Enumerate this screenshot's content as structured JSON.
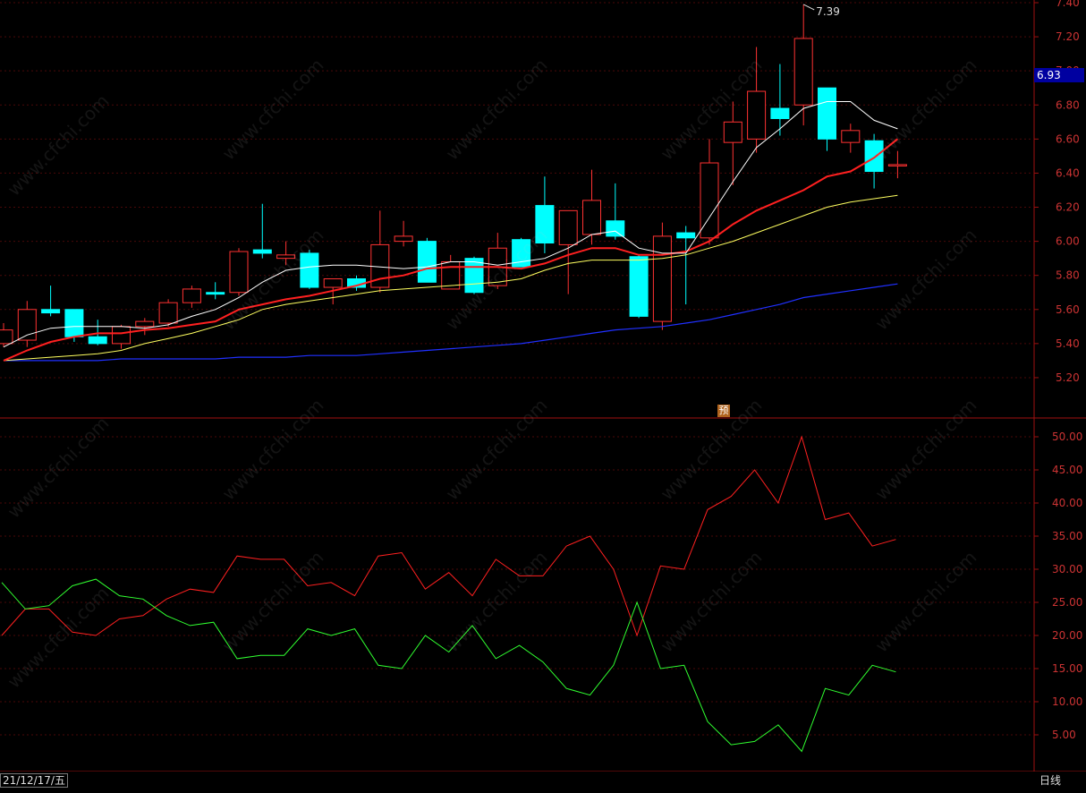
{
  "price_tag": "6.93",
  "date_label": "21/12/17/五",
  "period_label": "日线",
  "preview_icon": "预",
  "watermark": "www.cfchi.com",
  "colors": {
    "up": "#ff3232",
    "down": "#00ffff",
    "ma5": "#ffffff",
    "ma10": "#ff2020",
    "ma20": "#ffff60",
    "ma60": "#2030ff",
    "indicator_a": "#ff2020",
    "indicator_b": "#30ff30",
    "axis": "#a01010"
  },
  "chart_data": [
    {
      "type": "candlestick",
      "title": "",
      "ylim": [
        5.1,
        7.4
      ],
      "ytick_labels": [
        "7.40",
        "7.20",
        "7.00",
        "6.80",
        "6.60",
        "6.40",
        "6.20",
        "6.00",
        "5.80",
        "5.60",
        "5.40",
        "5.20"
      ],
      "max_annotation": "7.39",
      "candles": [
        {
          "o": 5.4,
          "h": 5.52,
          "l": 5.38,
          "c": 5.48
        },
        {
          "o": 5.42,
          "h": 5.65,
          "l": 5.38,
          "c": 5.6
        },
        {
          "o": 5.6,
          "h": 5.74,
          "l": 5.56,
          "c": 5.58
        },
        {
          "o": 5.6,
          "h": 5.6,
          "l": 5.41,
          "c": 5.44
        },
        {
          "o": 5.44,
          "h": 5.54,
          "l": 5.39,
          "c": 5.4
        },
        {
          "o": 5.4,
          "h": 5.51,
          "l": 5.37,
          "c": 5.5
        },
        {
          "o": 5.5,
          "h": 5.55,
          "l": 5.45,
          "c": 5.53
        },
        {
          "o": 5.52,
          "h": 5.66,
          "l": 5.5,
          "c": 5.64
        },
        {
          "o": 5.64,
          "h": 5.74,
          "l": 5.61,
          "c": 5.72
        },
        {
          "o": 5.7,
          "h": 5.76,
          "l": 5.66,
          "c": 5.69
        },
        {
          "o": 5.7,
          "h": 5.96,
          "l": 5.68,
          "c": 5.94
        },
        {
          "o": 5.95,
          "h": 6.22,
          "l": 5.9,
          "c": 5.93
        },
        {
          "o": 5.9,
          "h": 6.0,
          "l": 5.86,
          "c": 5.92
        },
        {
          "o": 5.93,
          "h": 5.95,
          "l": 5.72,
          "c": 5.73
        },
        {
          "o": 5.73,
          "h": 5.78,
          "l": 5.63,
          "c": 5.78
        },
        {
          "o": 5.78,
          "h": 5.8,
          "l": 5.71,
          "c": 5.73
        },
        {
          "o": 5.73,
          "h": 6.18,
          "l": 5.7,
          "c": 5.98
        },
        {
          "o": 6.0,
          "h": 6.12,
          "l": 5.97,
          "c": 6.03
        },
        {
          "o": 6.0,
          "h": 6.02,
          "l": 5.76,
          "c": 5.76
        },
        {
          "o": 5.72,
          "h": 5.92,
          "l": 5.72,
          "c": 5.88
        },
        {
          "o": 5.9,
          "h": 5.91,
          "l": 5.69,
          "c": 5.7
        },
        {
          "o": 5.74,
          "h": 6.05,
          "l": 5.72,
          "c": 5.96
        },
        {
          "o": 6.01,
          "h": 6.02,
          "l": 5.85,
          "c": 5.85
        },
        {
          "o": 6.21,
          "h": 6.38,
          "l": 5.93,
          "c": 5.99
        },
        {
          "o": 5.98,
          "h": 6.18,
          "l": 5.69,
          "c": 6.18
        },
        {
          "o": 6.04,
          "h": 6.42,
          "l": 5.98,
          "c": 6.24
        },
        {
          "o": 6.12,
          "h": 6.34,
          "l": 6.01,
          "c": 6.03
        },
        {
          "o": 5.91,
          "h": 5.92,
          "l": 5.55,
          "c": 5.56
        },
        {
          "o": 5.53,
          "h": 6.11,
          "l": 5.48,
          "c": 6.03
        },
        {
          "o": 6.05,
          "h": 6.09,
          "l": 5.63,
          "c": 6.02
        },
        {
          "o": 6.02,
          "h": 6.6,
          "l": 5.98,
          "c": 6.46
        },
        {
          "o": 6.58,
          "h": 6.82,
          "l": 6.33,
          "c": 6.7
        },
        {
          "o": 6.6,
          "h": 7.14,
          "l": 6.52,
          "c": 6.88
        },
        {
          "o": 6.78,
          "h": 7.04,
          "l": 6.62,
          "c": 6.72
        },
        {
          "o": 6.8,
          "h": 7.39,
          "l": 6.68,
          "c": 7.19
        },
        {
          "o": 6.9,
          "h": 6.9,
          "l": 6.53,
          "c": 6.6
        },
        {
          "o": 6.58,
          "h": 6.69,
          "l": 6.52,
          "c": 6.65
        },
        {
          "o": 6.59,
          "h": 6.63,
          "l": 6.31,
          "c": 6.41
        },
        {
          "o": 6.45,
          "h": 6.53,
          "l": 6.37,
          "c": 6.45
        }
      ],
      "ma5": [
        5.38,
        5.45,
        5.49,
        5.5,
        5.5,
        5.5,
        5.49,
        5.51,
        5.56,
        5.6,
        5.67,
        5.76,
        5.83,
        5.85,
        5.86,
        5.86,
        5.85,
        5.84,
        5.85,
        5.88,
        5.88,
        5.86,
        5.88,
        5.9,
        5.96,
        6.04,
        6.06,
        5.96,
        5.93,
        5.93,
        6.14,
        6.35,
        6.55,
        6.66,
        6.78,
        6.82,
        6.82,
        6.71,
        6.66
      ],
      "ma10": [
        5.3,
        5.36,
        5.41,
        5.44,
        5.46,
        5.46,
        5.48,
        5.49,
        5.51,
        5.53,
        5.6,
        5.63,
        5.66,
        5.68,
        5.71,
        5.74,
        5.78,
        5.8,
        5.84,
        5.85,
        5.85,
        5.85,
        5.84,
        5.87,
        5.92,
        5.96,
        5.96,
        5.92,
        5.92,
        5.94,
        6.0,
        6.1,
        6.18,
        6.24,
        6.3,
        6.38,
        6.41,
        6.49,
        6.6
      ],
      "ma20": [
        5.3,
        5.31,
        5.32,
        5.33,
        5.34,
        5.36,
        5.4,
        5.43,
        5.46,
        5.5,
        5.54,
        5.6,
        5.63,
        5.65,
        5.67,
        5.69,
        5.71,
        5.72,
        5.73,
        5.74,
        5.75,
        5.76,
        5.78,
        5.83,
        5.87,
        5.89,
        5.89,
        5.89,
        5.9,
        5.92,
        5.96,
        6.0,
        6.05,
        6.1,
        6.15,
        6.2,
        6.23,
        6.25,
        6.27
      ],
      "ma60": [
        5.3,
        5.3,
        5.3,
        5.3,
        5.3,
        5.31,
        5.31,
        5.31,
        5.31,
        5.31,
        5.32,
        5.32,
        5.32,
        5.33,
        5.33,
        5.33,
        5.34,
        5.35,
        5.36,
        5.37,
        5.38,
        5.39,
        5.4,
        5.42,
        5.44,
        5.46,
        5.48,
        5.49,
        5.5,
        5.52,
        5.54,
        5.57,
        5.6,
        5.63,
        5.67,
        5.69,
        5.71,
        5.73,
        5.75
      ]
    },
    {
      "type": "line",
      "title": "",
      "ylim": [
        0,
        53
      ],
      "ytick_labels": [
        "50.00",
        "45.00",
        "40.00",
        "35.00",
        "30.00",
        "25.00",
        "20.00",
        "15.00",
        "10.00",
        "5.00"
      ],
      "series": [
        {
          "values": [
            20,
            24,
            24,
            20.5,
            20,
            22.5,
            23,
            25.5,
            27,
            26.5,
            32,
            31.5,
            31.5,
            27.5,
            28,
            26,
            32,
            32.5,
            27,
            29.5,
            26,
            31.5,
            29,
            29,
            33.5,
            35,
            30,
            20,
            30.5,
            30,
            39,
            41,
            45,
            40,
            50,
            37.5,
            38.5,
            33.5,
            34.5
          ]
        },
        {
          "values": [
            28,
            24,
            24.5,
            27.5,
            28.5,
            26,
            25.5,
            23,
            21.5,
            22,
            16.5,
            17,
            17,
            21,
            20,
            21,
            15.5,
            15,
            20,
            17.5,
            21.5,
            16.5,
            18.5,
            16,
            12,
            11,
            15.5,
            25,
            15,
            15.5,
            7,
            3.5,
            4,
            6.5,
            2.5,
            12,
            11,
            15.5,
            14.5
          ]
        }
      ]
    }
  ]
}
